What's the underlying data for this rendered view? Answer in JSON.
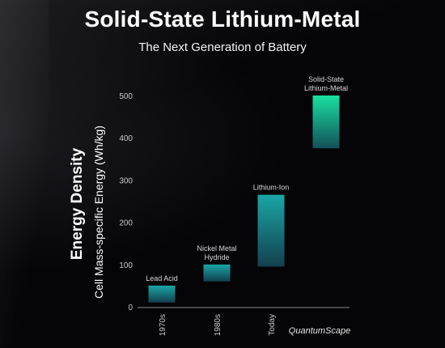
{
  "header": {
    "title": "Solid-State Lithium-Metal",
    "subtitle": "The Next Generation of Battery"
  },
  "brand": "QuantumScape",
  "colors": {
    "background": "#050507",
    "bar_top": "#1aa6a6",
    "bar_bottom": "#13404e",
    "bar_top_highlight": "#19e0a0",
    "axis": "#8a8a8a"
  },
  "chart_data": {
    "type": "bar",
    "ylabel_primary": "Energy Density",
    "ylabel_secondary": "Cell Mass-specific Energy (Wh/kg)",
    "ylim": [
      0,
      500
    ],
    "yticks": [
      0,
      100,
      200,
      300,
      400,
      500
    ],
    "categories": [
      "1970s",
      "1980s",
      "Today",
      "QuantumScape"
    ],
    "series": [
      {
        "ranges": [
          {
            "low": 10,
            "high": 50
          },
          {
            "low": 60,
            "high": 100
          },
          {
            "low": 95,
            "high": 265
          },
          {
            "low": 375,
            "high": 500
          }
        ]
      }
    ],
    "bar_labels": [
      [
        "Lead Acid"
      ],
      [
        "Nickel Metal",
        "Hydride"
      ],
      [
        "Lithium-Ion"
      ],
      [
        "Solid-State",
        "Lithium-Metal"
      ]
    ],
    "grid": false
  }
}
